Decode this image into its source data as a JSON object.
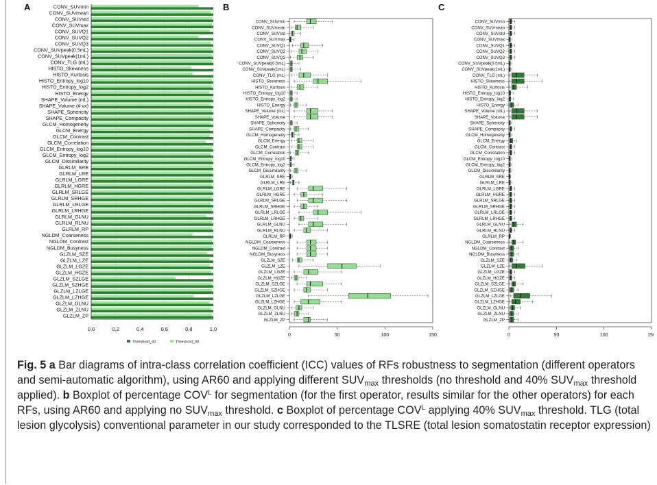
{
  "chart_data": [
    {
      "panel": "A",
      "type": "bar",
      "orientation": "horizontal",
      "categories": [
        "CONV_SUVmin",
        "CONV_SUVmean",
        "CONV_SUVstd",
        "CONV_SUVmax",
        "CONV_SUVQ1",
        "CONV_SUVQ2",
        "CONV_SUVQ3",
        "CONV_SUVpeak(0.5mL)",
        "CONV_SUVpeak(1mL)",
        "CONV_TLG (mL)",
        "HISTO_Skewness",
        "HISTO_Kurtosis",
        "HISTO_Entropy_log10",
        "HISTO_Entropy_log2",
        "HISTO_Energy",
        "SHAPE_Volume (mL)",
        "SHAPE_Volume (# vx)",
        "SHAPE_Sphericity",
        "SHAPE_Compacity",
        "GLCM_Homogeneity",
        "GLCM_Energy",
        "GLCM_Contrast",
        "GLCM_Correlation",
        "GLCM_Entropy_log10",
        "GLCM_Entropy_log2",
        "GLCM_Dissimilarity",
        "GLRLM_SRE",
        "GLRLM_LRE",
        "GLRLM_LGRE",
        "GLRLM_HGRE",
        "GLRLM_SRLGE",
        "GLRLM_SRHGE",
        "GLRLM_LRLGE",
        "GLRLM_LRHGE",
        "GLRLM_GLNU",
        "GLRLM_RLNU",
        "GLRLM_RP",
        "NGLDM_Coarseness",
        "NGLDM_Contrast",
        "NGLDM_Busyness",
        "GLZLM_SZE",
        "GLZLM_LZE",
        "GLZLM_LGZE",
        "GLZLM_HGZE",
        "GLZLM_SZLGE",
        "GLZLM_SZHGE",
        "GLZLM_LZLGE",
        "GLZLM_LZHGE",
        "GLZLM_GLNU",
        "GLZLM_ZLNU",
        "GLZLM_ZP"
      ],
      "series": [
        {
          "name": "Threshold_40",
          "color": "#2e7d32",
          "values": [
            1.0,
            1.0,
            1.0,
            1.0,
            1.0,
            1.0,
            1.0,
            1.0,
            1.0,
            1.0,
            1.0,
            1.0,
            1.0,
            1.0,
            1.0,
            1.0,
            1.0,
            1.0,
            1.0,
            1.0,
            1.0,
            1.0,
            1.0,
            1.0,
            1.0,
            1.0,
            1.0,
            1.0,
            1.0,
            1.0,
            1.0,
            1.0,
            1.0,
            1.0,
            1.0,
            1.0,
            1.0,
            1.0,
            1.0,
            1.0,
            1.0,
            1.0,
            1.0,
            1.0,
            1.0,
            1.0,
            1.0,
            1.0,
            1.0,
            1.0,
            1.0
          ]
        },
        {
          "name": "Threshold_00",
          "color": "#9be79b",
          "values": [
            0.88,
            0.98,
            0.99,
            0.99,
            0.97,
            0.88,
            0.98,
            0.99,
            0.99,
            0.99,
            0.82,
            0.83,
            0.99,
            0.99,
            0.97,
            0.99,
            0.98,
            0.99,
            0.99,
            0.98,
            0.97,
            0.97,
            0.94,
            0.99,
            0.98,
            0.99,
            0.99,
            0.99,
            0.99,
            0.99,
            0.99,
            0.99,
            0.98,
            0.99,
            0.94,
            0.99,
            0.99,
            0.83,
            0.99,
            0.99,
            0.95,
            0.97,
            0.97,
            0.98,
            0.69,
            0.99,
            0.99,
            0.84,
            0.97,
            0.98,
            0.99
          ]
        }
      ],
      "xlim": [
        0,
        1
      ],
      "xticks": [
        "0,0",
        "0,2",
        "0,4",
        "0,6",
        "0,8",
        "1,0"
      ],
      "legend": "bottom"
    },
    {
      "panel": "B",
      "type": "boxplot",
      "orientation": "horizontal",
      "box_color": "#8fe08f",
      "categories": [
        "CONV_SUVmin",
        "CONV_SUVmean",
        "CONV_SUVstd",
        "CONV_SUVmax",
        "CONV_SUVQ1",
        "CONV_SUVQ2",
        "CONV_SUVQ3",
        "CONV_SUVpeak(0.5mL)",
        "CONV_SUVpeak(1mL)",
        "CONV_TLG (mL)",
        "HISTO_Skewness",
        "HISTO_Kurtosis",
        "HISTO_Entropy_log10",
        "HISTO_Entropy_log2",
        "HISTO_Energy",
        "SHAPE_Volume (mL)",
        "SHAPE_Volume",
        "SHAPE_Sphericity",
        "SHAPE_Compacity",
        "GLCM_Homogeneity",
        "GLCM_Energy",
        "GLCM_Contrast",
        "GLCM_Correlation",
        "GLCM_Entropy_log10",
        "GLCM_Entropy_log2",
        "GLCM_Dissimilarity",
        "GLRLM_SRE",
        "GLRLM_LRE",
        "GLRLM_LGRE",
        "GLRLM_HGRE",
        "GLRLM_SRLGE",
        "GLRLM_SRHGE",
        "GLRLM_LRLGE",
        "GLRLM_LRHGE",
        "GLRLM_GLNU",
        "GLRLM_RLNU",
        "GLRLM_RP",
        "NGLDM_Coarseness",
        "NGLDM_Contrast",
        "NGLDM_Busyness",
        "GLZLM_SZE",
        "GLZLM_LZE",
        "GLZLM_LGZE",
        "GLZLM_HGZE",
        "GLZLM_SZLGE",
        "GLZLM_SZHGE",
        "GLZLM_LZLGE",
        "GLZLM_LZHGE",
        "GLZLM_GLNU",
        "GLZLM_ZLNU",
        "GLZLM_ZP"
      ],
      "boxes": [
        [
          5,
          18,
          22,
          28,
          45
        ],
        [
          2,
          6,
          8,
          12,
          25
        ],
        [
          0,
          2,
          3,
          5,
          12
        ],
        [
          0,
          0.5,
          1,
          2,
          5
        ],
        [
          3,
          12,
          15,
          20,
          35
        ],
        [
          2,
          10,
          13,
          18,
          30
        ],
        [
          1,
          8,
          11,
          14,
          25
        ],
        [
          0,
          1,
          2,
          3,
          10
        ],
        [
          0,
          1,
          2,
          3,
          12
        ],
        [
          2,
          10,
          15,
          22,
          40
        ],
        [
          5,
          25,
          30,
          40,
          75
        ],
        [
          2,
          8,
          11,
          15,
          30
        ],
        [
          0,
          1,
          2,
          3,
          8
        ],
        [
          0,
          1,
          2,
          3,
          8
        ],
        [
          1,
          5,
          7,
          9,
          18
        ],
        [
          5,
          18,
          22,
          30,
          45
        ],
        [
          5,
          18,
          22,
          30,
          45
        ],
        [
          0,
          1,
          2,
          3,
          8
        ],
        [
          1,
          5,
          7,
          10,
          20
        ],
        [
          0,
          2,
          3,
          5,
          10
        ],
        [
          2,
          8,
          10,
          13,
          25
        ],
        [
          2,
          8,
          10,
          13,
          25
        ],
        [
          1,
          6,
          8,
          10,
          20
        ],
        [
          0,
          1,
          1.5,
          2,
          5
        ],
        [
          0,
          1,
          1.5,
          2,
          5
        ],
        [
          1,
          5,
          7,
          9,
          18
        ],
        [
          0,
          0.5,
          1,
          1.5,
          3
        ],
        [
          1,
          3,
          4,
          5,
          10
        ],
        [
          8,
          20,
          25,
          35,
          60
        ],
        [
          5,
          12,
          15,
          18,
          35
        ],
        [
          8,
          20,
          25,
          35,
          60
        ],
        [
          5,
          12,
          15,
          18,
          30
        ],
        [
          10,
          25,
          30,
          40,
          75
        ],
        [
          5,
          10,
          12,
          15,
          30
        ],
        [
          10,
          20,
          25,
          35,
          60
        ],
        [
          5,
          15,
          18,
          22,
          40
        ],
        [
          0,
          0.5,
          1,
          1.5,
          3
        ],
        [
          8,
          18,
          22,
          28,
          40
        ],
        [
          8,
          18,
          22,
          28,
          40
        ],
        [
          8,
          18,
          22,
          28,
          40
        ],
        [
          3,
          8,
          10,
          13,
          25
        ],
        [
          10,
          40,
          55,
          70,
          95
        ],
        [
          5,
          15,
          20,
          30,
          55
        ],
        [
          2,
          5,
          7,
          9,
          18
        ],
        [
          8,
          18,
          22,
          35,
          55
        ],
        [
          5,
          15,
          18,
          22,
          40
        ],
        [
          20,
          62,
          82,
          106,
          145
        ],
        [
          5,
          12,
          20,
          32,
          55
        ],
        [
          2,
          7,
          10,
          13,
          25
        ],
        [
          2,
          5,
          8,
          10,
          20
        ],
        [
          5,
          15,
          20,
          22,
          40
        ]
      ],
      "xlim": [
        0,
        150
      ],
      "xticks": [
        "0",
        "50",
        "100",
        "150"
      ]
    },
    {
      "panel": "C",
      "type": "boxplot",
      "orientation": "horizontal",
      "box_color": "#2e7d32",
      "categories": [
        "CONV_SUVmin",
        "CONV_SUVmean",
        "CONV_SUVstd",
        "CONV_SUVmax",
        "CONV_SUVQ1",
        "CONV_SUVQ2",
        "CONV_SUVQ3",
        "CONV_SUVpeak(0.5mL)",
        "CONV_SUVpeak(1mL)",
        "CONV_TLG (mL)",
        "HISTO_Skewness",
        "HISTO_Kurtosis",
        "HISTO_Entropy_log10",
        "HISTO_Entropy_log2",
        "HISTO_Energy",
        "SHAPE_Volume (mL)",
        "SHAPE_Volume",
        "SHAPE_Sphericity",
        "SHAPE_Compacity",
        "GLCM_Homogeneity",
        "GLCM_Energy",
        "GLCM_Contrast",
        "GLCM_Correlation",
        "GLCM_Entropy_log10",
        "GLCM_Entropy_log2",
        "GLCM_Dissimilarity",
        "GLRLM_SRE",
        "GLRLM_LRE",
        "GLRLM_LGRE",
        "GLRLM_HGRE",
        "GLRLM_SRLGE",
        "GLRLM_SRHGE",
        "GLRLM_LRLGE",
        "GLRLM_LRHGE",
        "GLRLM_GLNU",
        "GLRLM_RLNU",
        "GLRLM_RP",
        "NGLDM_Coarseness",
        "NGLDM_Contrast",
        "NGLDM_Busyness",
        "GLZLM_SZE",
        "GLZLM_LZE",
        "GLZLM_LGZE",
        "GLZLM_HGZE",
        "GLZLM_SZLGE",
        "GLZLM_SZHGE",
        "GLZLM_LZLGE",
        "GLZLM_LZHGE",
        "GLZLM_GLNU",
        "GLZLM_ZLNU",
        "GLZLM_ZP"
      ],
      "boxes": [
        [
          0,
          1,
          2,
          3,
          6
        ],
        [
          0,
          1,
          2,
          3,
          6
        ],
        [
          0,
          1,
          2,
          3,
          6
        ],
        [
          0,
          0.5,
          1,
          1.5,
          3
        ],
        [
          0,
          1,
          2,
          3,
          6
        ],
        [
          0,
          1,
          2,
          3,
          6
        ],
        [
          0,
          1,
          2,
          3,
          6
        ],
        [
          0,
          0.5,
          1,
          1.5,
          3
        ],
        [
          0,
          0.5,
          1,
          1.5,
          3
        ],
        [
          1,
          3,
          8,
          16,
          30
        ],
        [
          1,
          3,
          8,
          16,
          35
        ],
        [
          1,
          3,
          5,
          8,
          20
        ],
        [
          0,
          0.5,
          1,
          2,
          5
        ],
        [
          0,
          0.5,
          1,
          2,
          5
        ],
        [
          0,
          1,
          3,
          5,
          10
        ],
        [
          1,
          3,
          8,
          16,
          30
        ],
        [
          1,
          3,
          8,
          16,
          30
        ],
        [
          0,
          0.5,
          1,
          1.5,
          3
        ],
        [
          0,
          1,
          2,
          3,
          6
        ],
        [
          0,
          0.5,
          1,
          1.5,
          3
        ],
        [
          0,
          1,
          2,
          4,
          8
        ],
        [
          0,
          1,
          2,
          3,
          6
        ],
        [
          0,
          1,
          2,
          3,
          6
        ],
        [
          0,
          0.5,
          1,
          1.5,
          3
        ],
        [
          0,
          0.5,
          1,
          1.5,
          3
        ],
        [
          0,
          0.5,
          1,
          1.5,
          3
        ],
        [
          0,
          0.3,
          0.5,
          1,
          2
        ],
        [
          0,
          0.5,
          1,
          1.5,
          3
        ],
        [
          0,
          1,
          2,
          3,
          6
        ],
        [
          0,
          1,
          2,
          3,
          6
        ],
        [
          0,
          1,
          2,
          3,
          6
        ],
        [
          0,
          1,
          2,
          3,
          6
        ],
        [
          0,
          1,
          2,
          3,
          6
        ],
        [
          0,
          1,
          2,
          3,
          6
        ],
        [
          1,
          3,
          5,
          8,
          15
        ],
        [
          0,
          1,
          2,
          3,
          6
        ],
        [
          0,
          0.3,
          0.5,
          1,
          2
        ],
        [
          1,
          3,
          5,
          7,
          15
        ],
        [
          0,
          1,
          3,
          5,
          10
        ],
        [
          0,
          1,
          3,
          5,
          10
        ],
        [
          0,
          1,
          2,
          4,
          8
        ],
        [
          1,
          3,
          8,
          17,
          35
        ],
        [
          0,
          1,
          2,
          3,
          6
        ],
        [
          0,
          1,
          2,
          3,
          6
        ],
        [
          1,
          3,
          5,
          7,
          15
        ],
        [
          0,
          1,
          3,
          5,
          10
        ],
        [
          2,
          5,
          12,
          22,
          45
        ],
        [
          1,
          3,
          7,
          12,
          25
        ],
        [
          1,
          2,
          4,
          6,
          12
        ],
        [
          0,
          1,
          3,
          5,
          10
        ],
        [
          0,
          1,
          3,
          5,
          10
        ]
      ],
      "xlim": [
        0,
        150
      ],
      "xticks": [
        "0",
        "50",
        "100",
        "150"
      ]
    }
  ],
  "labels": {
    "panel_a": "A",
    "panel_b": "B",
    "panel_c": "C"
  },
  "caption": {
    "fig_label": "Fig. 5",
    "a_label": "a",
    "a_text_1": " Bar diagrams of intra-class correlation coefficient (ICC) values of RFs robustness to segmentation (different operators and semi-automatic algorithm), using AR60 and applying different SUV",
    "max1": "max",
    "a_text_2": " thresholds (no threshold and 40% SUV",
    "max2": "max",
    "a_text_3": " threshold applied). ",
    "b_label": "b",
    "b_text_1": " Boxplot of percentage COV",
    "sup_l1": "L",
    "b_text_2": " for segmentation (for the first operator, results similar for the other operators) for each RFs, using AR60 and applying no SUV",
    "max3": "max",
    "b_text_3": " threshold. ",
    "c_label": "c",
    "c_text_1": " Boxplot of percentage COV",
    "sup_l2": "L",
    "c_text_2": " applying 40% SUV",
    "max4": "max",
    "c_text_3": " threshold. TLG (total lesion glycolysis) conventional parameter in our study corresponded to the TLSRE (total lesion somatostatin receptor expression)"
  }
}
